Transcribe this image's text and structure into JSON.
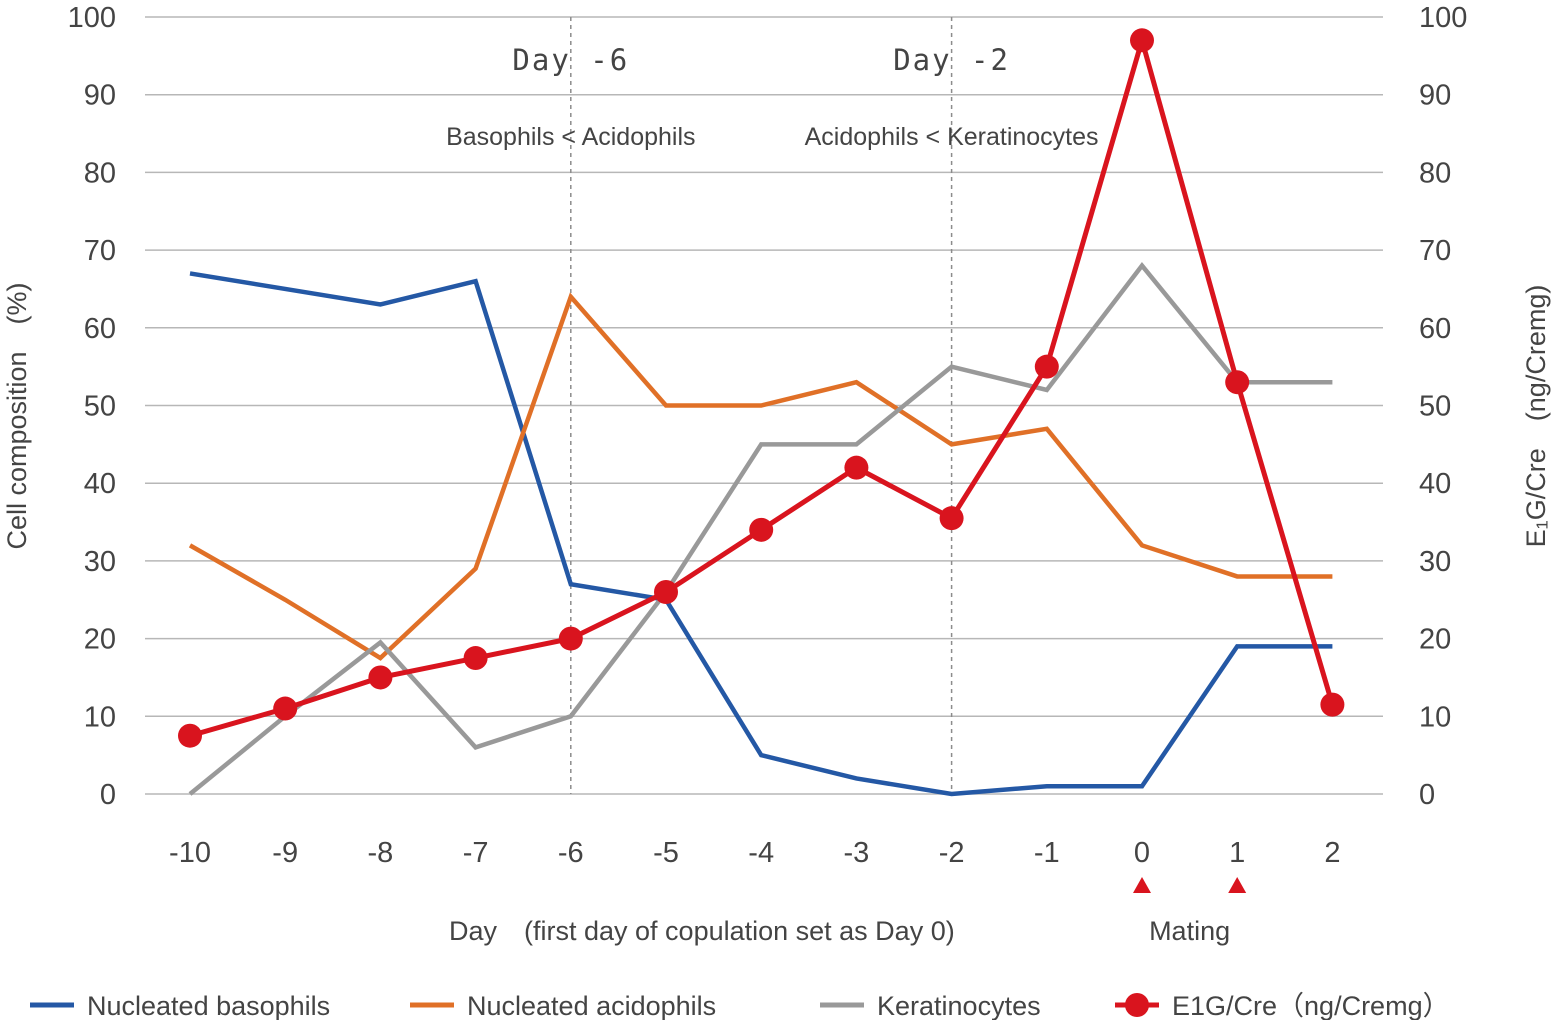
{
  "chart_data": {
    "type": "line",
    "title": "",
    "xlabel": "Day　(first day of copulation set as Day 0)",
    "ylabel": "Cell composition　(%)",
    "y2label": "E₁G/Cre　(ng/Cremg)",
    "x": [
      -10,
      -9,
      -8,
      -7,
      -6,
      -5,
      -4,
      -3,
      -2,
      -1,
      0,
      1,
      2
    ],
    "x_tick_labels": [
      "-10",
      "-9",
      "-8",
      "-7",
      "-6",
      "-5",
      "-4",
      "-3",
      "-2",
      "-1",
      "0",
      "1",
      "2"
    ],
    "ylim": [
      0,
      100
    ],
    "y2lim": [
      0,
      100
    ],
    "y_ticks": [
      "0",
      "10",
      "20",
      "30",
      "40",
      "50",
      "60",
      "70",
      "80",
      "90",
      "100"
    ],
    "y2_ticks": [
      "0",
      "10",
      "20",
      "30",
      "40",
      "50",
      "60",
      "70",
      "80",
      "90",
      "100"
    ],
    "grid": "horizontal",
    "legend_position": "bottom",
    "series": [
      {
        "name": "Nucleated basophils",
        "color": "#2458a5",
        "axis": "left",
        "marker": "none",
        "values": [
          67,
          65,
          63,
          66,
          27,
          25,
          5,
          2,
          0,
          1,
          1,
          19,
          19
        ]
      },
      {
        "name": "Nucleated acidophils",
        "color": "#e07027",
        "axis": "left",
        "marker": "none",
        "values": [
          32,
          25,
          17.5,
          29,
          64,
          50,
          50,
          53,
          45,
          47,
          32,
          28,
          28
        ]
      },
      {
        "name": "Keratinocytes",
        "color": "#999999",
        "axis": "left",
        "marker": "none",
        "values": [
          0,
          10,
          19.5,
          6,
          10,
          26,
          45,
          45,
          55,
          52,
          68,
          53,
          53
        ]
      },
      {
        "name": "E1G/Cre（ng/Cremg）",
        "color": "#d9141e",
        "axis": "right",
        "marker": "circle",
        "values": [
          7.5,
          11,
          15,
          17.5,
          20,
          26,
          34,
          42,
          35.5,
          55,
          97,
          53,
          11.5
        ]
      }
    ],
    "annotations": {
      "lines": [
        {
          "x": -6,
          "day_label": "Day -6",
          "note": "Basophils < Acidophils"
        },
        {
          "x": -2,
          "day_label": "Day -2",
          "note": "Acidophils < Keratinocytes"
        }
      ],
      "mating": {
        "label": "Mating",
        "days": [
          0,
          1
        ],
        "color": "#d9141e"
      }
    }
  }
}
